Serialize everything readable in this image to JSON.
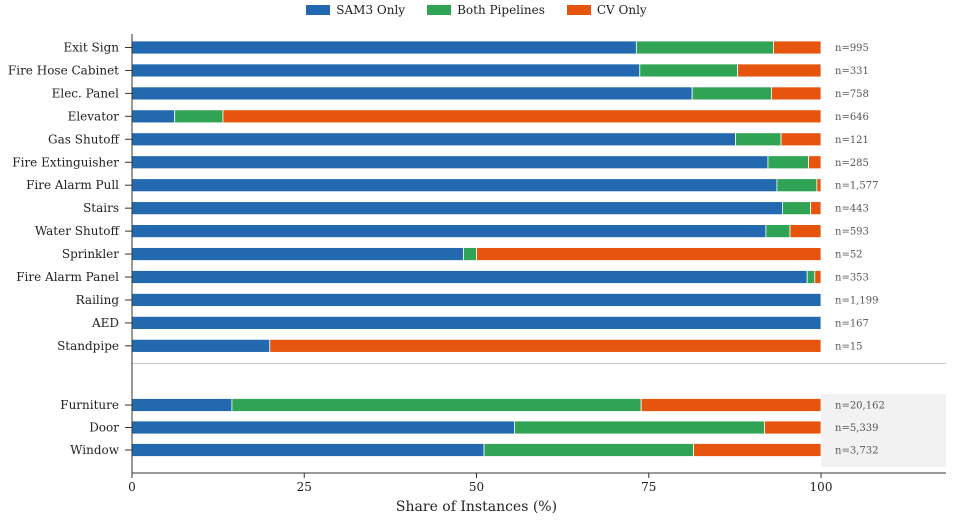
{
  "chart_data": {
    "type": "bar",
    "orientation": "horizontal",
    "stacked": true,
    "xlabel": "Share of Instances (%)",
    "xlim": [
      0,
      100
    ],
    "xticks": [
      "0",
      "25",
      "50",
      "75",
      "100"
    ],
    "grid": false,
    "legend_position": "top-center",
    "colors": {
      "SAM3 Only": "#2369b0",
      "Both Pipelines": "#31a354",
      "CV Only": "#e6550d"
    },
    "series_names": [
      "SAM3 Only",
      "Both Pipelines",
      "CV Only"
    ],
    "groups": [
      {
        "categories": [
          "Exit Sign",
          "Fire Hose Cabinet",
          "Elec. Panel",
          "Elevator",
          "Gas Shutoff",
          "Fire Extinguisher",
          "Fire Alarm Pull",
          "Stairs",
          "Water Shutoff",
          "Sprinkler",
          "Fire Alarm Panel",
          "Railing",
          "AED",
          "Standpipe"
        ],
        "counts": [
          "n=995",
          "n=331",
          "n=758",
          "n=646",
          "n=121",
          "n=285",
          "n=1,577",
          "n=443",
          "n=593",
          "n=52",
          "n=353",
          "n=1,199",
          "n=167",
          "n=15"
        ],
        "series": [
          {
            "name": "SAM3 Only",
            "values": [
              73.2,
              73.7,
              81.3,
              6.2,
              87.6,
              92.3,
              93.6,
              94.4,
              92.0,
              48.1,
              98.0,
              100,
              100,
              20.0
            ]
          },
          {
            "name": "Both Pipelines",
            "values": [
              19.9,
              14.2,
              11.5,
              7.0,
              6.6,
              5.9,
              5.8,
              4.1,
              3.5,
              1.9,
              1.1,
              0,
              0,
              0
            ]
          },
          {
            "name": "CV Only",
            "values": [
              6.9,
              12.1,
              7.2,
              86.8,
              5.8,
              1.8,
              0.6,
              1.5,
              4.5,
              50.0,
              0.9,
              0,
              0,
              80.0
            ]
          }
        ]
      },
      {
        "categories": [
          "Furniture",
          "Door",
          "Window"
        ],
        "counts": [
          "n=20,162",
          "n=5,339",
          "n=3,732"
        ],
        "series": [
          {
            "name": "SAM3 Only",
            "values": [
              14.5,
              55.5,
              51.1
            ]
          },
          {
            "name": "Both Pipelines",
            "values": [
              59.4,
              36.3,
              30.4
            ]
          },
          {
            "name": "CV Only",
            "values": [
              26.1,
              8.2,
              18.5
            ]
          }
        ]
      }
    ]
  }
}
